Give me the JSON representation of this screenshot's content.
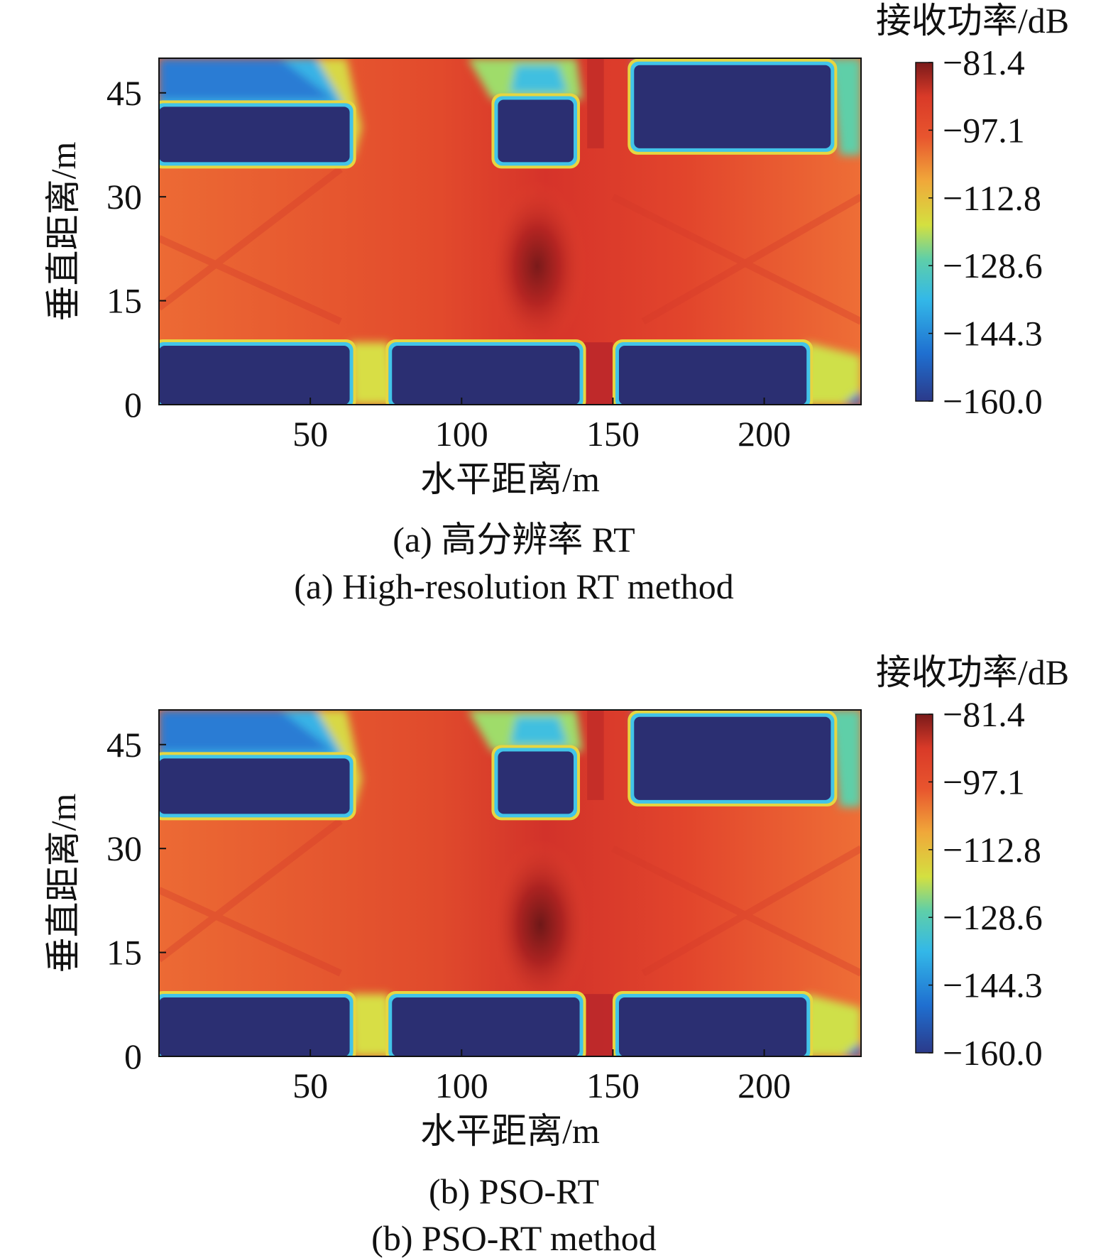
{
  "colorbar": {
    "title": "接收功率/dB",
    "ticks": [
      "−81.4",
      "−97.1",
      "−112.8",
      "−128.6",
      "−144.3",
      "−160.0"
    ],
    "min": -160.0,
    "max": -81.4,
    "colors": [
      "#2b3a8a",
      "#1f6fd0",
      "#33b8e8",
      "#5fcfa8",
      "#d4e040",
      "#f0a83a",
      "#e8552e",
      "#d93a28",
      "#7a1a1a"
    ]
  },
  "chart_data": [
    {
      "type": "heatmap",
      "panel": "a",
      "xlabel": "水平距离/m",
      "ylabel": "垂直距离/m",
      "xticks": [
        "50",
        "100",
        "150",
        "200"
      ],
      "yticks": [
        "0",
        "15",
        "30",
        "45"
      ],
      "xlim": [
        0,
        232
      ],
      "ylim": [
        0,
        50
      ],
      "caption_cn": "(a) 高分辨率 RT",
      "caption_en": "(a) High-resolution RT method",
      "value_range": [
        -160.0,
        -81.4
      ],
      "peak": {
        "x": 125,
        "y": 20
      },
      "buildings": [
        {
          "x0": 0,
          "x1": 63,
          "y0": 35,
          "y1": 43
        },
        {
          "x0": 112,
          "x1": 137,
          "y0": 35,
          "y1": 44
        },
        {
          "x0": 157,
          "x1": 222,
          "y0": 37,
          "y1": 49
        },
        {
          "x0": 0,
          "x1": 63,
          "y0": 0,
          "y1": 8.5
        },
        {
          "x0": 77,
          "x1": 139,
          "y0": 0,
          "y1": 8.5
        },
        {
          "x0": 152,
          "x1": 214,
          "y0": 0,
          "y1": 8.5
        }
      ]
    },
    {
      "type": "heatmap",
      "panel": "b",
      "xlabel": "水平距离/m",
      "ylabel": "垂直距离/m",
      "xticks": [
        "50",
        "100",
        "150",
        "200"
      ],
      "yticks": [
        "0",
        "15",
        "30",
        "45"
      ],
      "xlim": [
        0,
        232
      ],
      "ylim": [
        0,
        50
      ],
      "caption_cn": "(b) PSO-RT",
      "caption_en": "(b) PSO-RT method",
      "value_range": [
        -160.0,
        -81.4
      ],
      "peak": {
        "x": 126,
        "y": 19
      },
      "buildings": [
        {
          "x0": 0,
          "x1": 63,
          "y0": 35,
          "y1": 43
        },
        {
          "x0": 112,
          "x1": 137,
          "y0": 35,
          "y1": 44
        },
        {
          "x0": 157,
          "x1": 222,
          "y0": 37,
          "y1": 49
        },
        {
          "x0": 0,
          "x1": 63,
          "y0": 0,
          "y1": 8.5
        },
        {
          "x0": 77,
          "x1": 139,
          "y0": 0,
          "y1": 8.5
        },
        {
          "x0": 152,
          "x1": 214,
          "y0": 0,
          "y1": 8.5
        }
      ]
    }
  ]
}
